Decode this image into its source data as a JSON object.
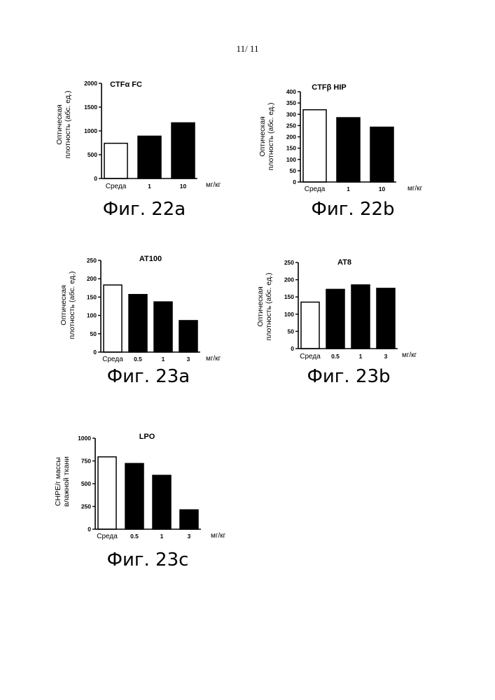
{
  "page_number": "11/ 11",
  "colors": {
    "vehicle_bar": "#ffffff",
    "dose_bar": "#000000",
    "axis": "#000000"
  },
  "chart_data": [
    {
      "id": "fig22a",
      "type": "bar",
      "title": "CTFα FC",
      "caption": "Фиг. 22a",
      "ylabel": "Оптическая плотность (абс. ед.)",
      "xunit": "мг/кг",
      "categories": [
        "Среда",
        "1",
        "10"
      ],
      "values": [
        740,
        890,
        1170
      ],
      "ylim": [
        0,
        2000
      ],
      "yticks": [
        0,
        500,
        1000,
        1500,
        2000
      ],
      "bar_fill": [
        "white",
        "black",
        "black"
      ]
    },
    {
      "id": "fig22b",
      "type": "bar",
      "title": "CTFβ HIP",
      "caption": "Фиг. 22b",
      "ylabel": "Оптическая плотность (абс. ед.)",
      "xunit": "мг/кг",
      "categories": [
        "Среда",
        "1",
        "10"
      ],
      "values": [
        320,
        285,
        243
      ],
      "ylim": [
        0,
        400
      ],
      "yticks": [
        0,
        50,
        100,
        150,
        200,
        250,
        300,
        350,
        400
      ],
      "bar_fill": [
        "white",
        "black",
        "black"
      ]
    },
    {
      "id": "fig23a",
      "type": "bar",
      "title": "AT100",
      "caption": "Фиг. 23a",
      "ylabel": "Оптическая плотность (абс. ед.)",
      "xunit": "мг/кг",
      "categories": [
        "Среда",
        "0.5",
        "1",
        "3"
      ],
      "values": [
        183,
        157,
        137,
        86
      ],
      "ylim": [
        0,
        250
      ],
      "yticks": [
        0,
        50,
        100,
        150,
        200,
        250
      ],
      "bar_fill": [
        "white",
        "black",
        "black",
        "black"
      ]
    },
    {
      "id": "fig23b",
      "type": "bar",
      "title": "AT8",
      "caption": "Фиг. 23b",
      "ylabel": "Оптическая плотность (абс. ед.)",
      "xunit": "мг/кг",
      "categories": [
        "Среда",
        "0.5",
        "1",
        "3"
      ],
      "values": [
        135,
        172,
        185,
        175
      ],
      "ylim": [
        0,
        250
      ],
      "yticks": [
        0,
        50,
        100,
        150,
        200,
        250
      ],
      "bar_fill": [
        "white",
        "black",
        "black",
        "black"
      ]
    },
    {
      "id": "fig23c",
      "type": "bar",
      "title": "LPO",
      "caption": "Фиг. 23c",
      "ylabel": "CHPE/г массы влажной ткани",
      "xunit": "мг/кг",
      "categories": [
        "Среда",
        "0.5",
        "1",
        "3"
      ],
      "values": [
        795,
        722,
        592,
        213
      ],
      "ylim": [
        0,
        1000
      ],
      "yticks": [
        0,
        250,
        500,
        750,
        1000
      ],
      "bar_fill": [
        "white",
        "black",
        "black",
        "black"
      ]
    }
  ]
}
